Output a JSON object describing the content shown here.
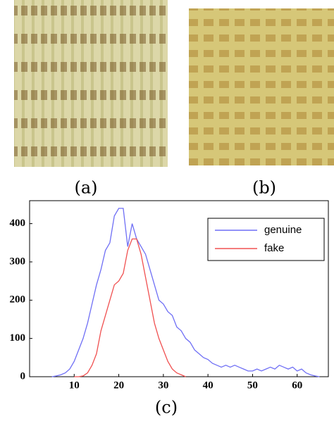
{
  "panels": [
    {
      "label": "(a)"
    },
    {
      "label": "(b)"
    },
    {
      "label": "(c)"
    }
  ],
  "chart_data": {
    "type": "line",
    "x": [
      5,
      6,
      7,
      8,
      9,
      10,
      11,
      12,
      13,
      14,
      15,
      16,
      17,
      18,
      19,
      20,
      21,
      22,
      23,
      24,
      25,
      26,
      27,
      28,
      29,
      30,
      31,
      32,
      33,
      34,
      35,
      36,
      37,
      38,
      39,
      40,
      41,
      42,
      43,
      44,
      45,
      46,
      47,
      48,
      49,
      50,
      51,
      52,
      53,
      54,
      55,
      56,
      57,
      58,
      59,
      60,
      61,
      62,
      63,
      64,
      65
    ],
    "series": [
      {
        "name": "genuine",
        "color": "#6f6ff5",
        "values": [
          0,
          2,
          5,
          10,
          20,
          40,
          70,
          100,
          140,
          190,
          240,
          280,
          330,
          350,
          420,
          440,
          440,
          340,
          400,
          360,
          340,
          320,
          280,
          240,
          200,
          190,
          170,
          160,
          130,
          120,
          100,
          90,
          70,
          60,
          50,
          45,
          35,
          30,
          25,
          30,
          25,
          30,
          25,
          20,
          15,
          15,
          20,
          15,
          20,
          25,
          20,
          30,
          25,
          20,
          25,
          15,
          20,
          10,
          5,
          2,
          0
        ]
      },
      {
        "name": "fake",
        "color": "#f05050",
        "values": [
          null,
          null,
          null,
          null,
          null,
          0,
          0,
          2,
          10,
          30,
          60,
          120,
          160,
          200,
          240,
          250,
          270,
          330,
          360,
          360,
          320,
          260,
          200,
          140,
          100,
          70,
          40,
          20,
          10,
          5,
          0,
          null,
          null,
          null,
          null,
          null,
          null,
          null,
          null,
          null,
          null,
          null,
          null,
          null,
          null,
          null,
          null,
          null,
          null,
          null,
          null,
          null,
          null,
          null,
          null,
          null,
          null,
          null,
          null,
          null,
          null
        ]
      }
    ],
    "xlim": [
      0,
      67
    ],
    "xticks": [
      10,
      20,
      30,
      40,
      50,
      60
    ],
    "ylim": [
      0,
      460
    ],
    "yticks": [
      0,
      100,
      200,
      300,
      400
    ],
    "legend": "upper right"
  }
}
